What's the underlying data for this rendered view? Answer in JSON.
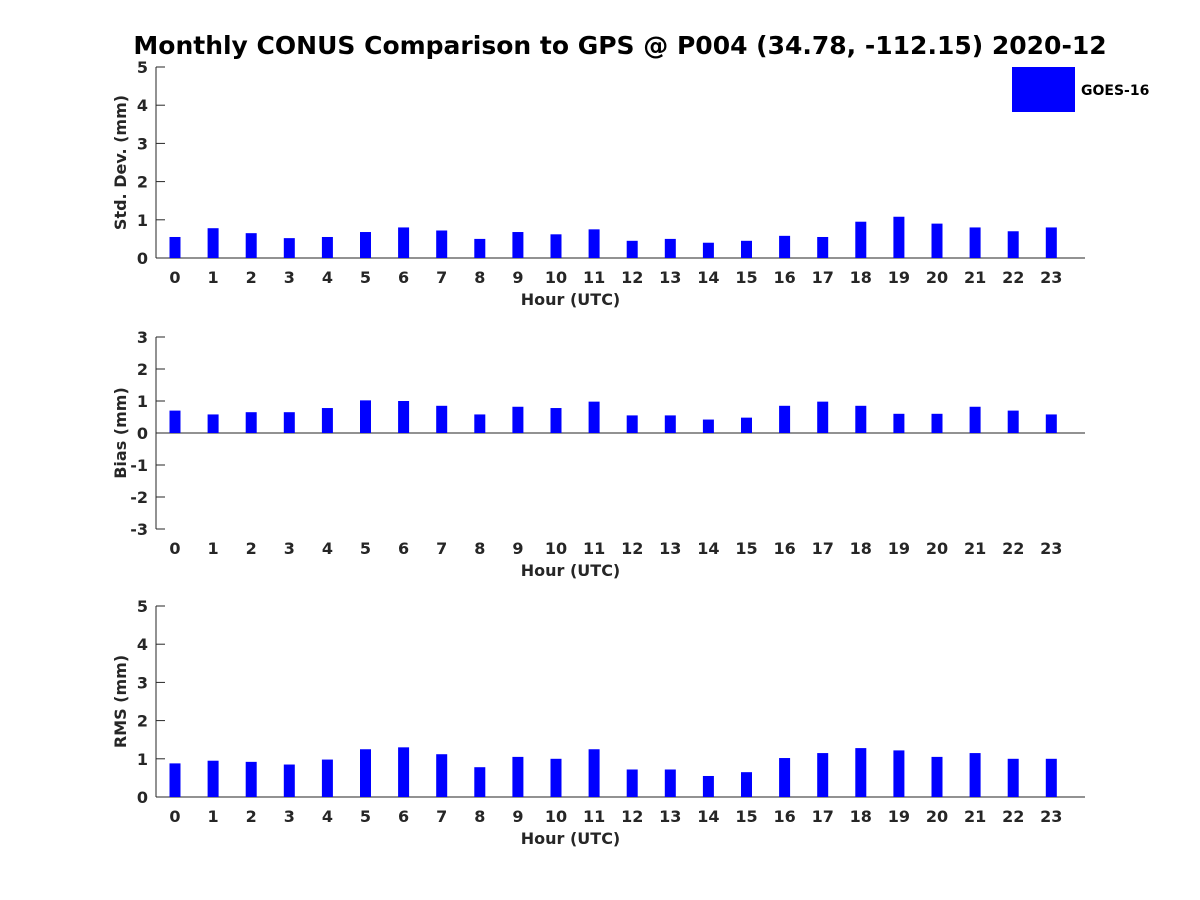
{
  "title": "Monthly CONUS Comparison to GPS @ P004 (34.78, -112.15) 2020-12",
  "legend": {
    "label": "GOES-16",
    "color": "#0000ff"
  },
  "chart_data": [
    {
      "type": "bar",
      "name": "std-dev",
      "xlabel": "Hour (UTC)",
      "ylabel": "Std. Dev. (mm)",
      "ylim": [
        0,
        5
      ],
      "yticks": [
        "0",
        "1",
        "2",
        "3",
        "4",
        "5"
      ],
      "categories": [
        "0",
        "1",
        "2",
        "3",
        "4",
        "5",
        "6",
        "7",
        "8",
        "9",
        "10",
        "11",
        "12",
        "13",
        "14",
        "15",
        "16",
        "17",
        "18",
        "19",
        "20",
        "21",
        "22",
        "23"
      ],
      "series": [
        {
          "name": "GOES-16",
          "values": [
            0.55,
            0.78,
            0.65,
            0.52,
            0.55,
            0.68,
            0.8,
            0.72,
            0.5,
            0.68,
            0.62,
            0.75,
            0.45,
            0.5,
            0.4,
            0.45,
            0.58,
            0.55,
            0.95,
            1.08,
            0.9,
            0.8,
            0.7,
            0.8
          ]
        }
      ]
    },
    {
      "type": "bar",
      "name": "bias",
      "xlabel": "Hour (UTC)",
      "ylabel": "Bias (mm)",
      "ylim": [
        -3,
        3
      ],
      "yticks": [
        "-3",
        "-2",
        "-1",
        "0",
        "1",
        "2",
        "3"
      ],
      "categories": [
        "0",
        "1",
        "2",
        "3",
        "4",
        "5",
        "6",
        "7",
        "8",
        "9",
        "10",
        "11",
        "12",
        "13",
        "14",
        "15",
        "16",
        "17",
        "18",
        "19",
        "20",
        "21",
        "22",
        "23"
      ],
      "series": [
        {
          "name": "GOES-16",
          "values": [
            0.7,
            0.58,
            0.65,
            0.65,
            0.78,
            1.02,
            1.0,
            0.85,
            0.58,
            0.82,
            0.78,
            0.98,
            0.55,
            0.55,
            0.42,
            0.48,
            0.85,
            0.98,
            0.85,
            0.6,
            0.6,
            0.82,
            0.7,
            0.58
          ]
        }
      ]
    },
    {
      "type": "bar",
      "name": "rms",
      "xlabel": "Hour (UTC)",
      "ylabel": "RMS (mm)",
      "ylim": [
        0,
        5
      ],
      "yticks": [
        "0",
        "1",
        "2",
        "3",
        "4",
        "5"
      ],
      "categories": [
        "0",
        "1",
        "2",
        "3",
        "4",
        "5",
        "6",
        "7",
        "8",
        "9",
        "10",
        "11",
        "12",
        "13",
        "14",
        "15",
        "16",
        "17",
        "18",
        "19",
        "20",
        "21",
        "22",
        "23"
      ],
      "series": [
        {
          "name": "GOES-16",
          "values": [
            0.88,
            0.95,
            0.92,
            0.85,
            0.98,
            1.25,
            1.3,
            1.12,
            0.78,
            1.05,
            1.0,
            1.25,
            0.72,
            0.72,
            0.55,
            0.65,
            1.02,
            1.15,
            1.28,
            1.22,
            1.05,
            1.15,
            1.0,
            1.0
          ]
        }
      ]
    }
  ]
}
